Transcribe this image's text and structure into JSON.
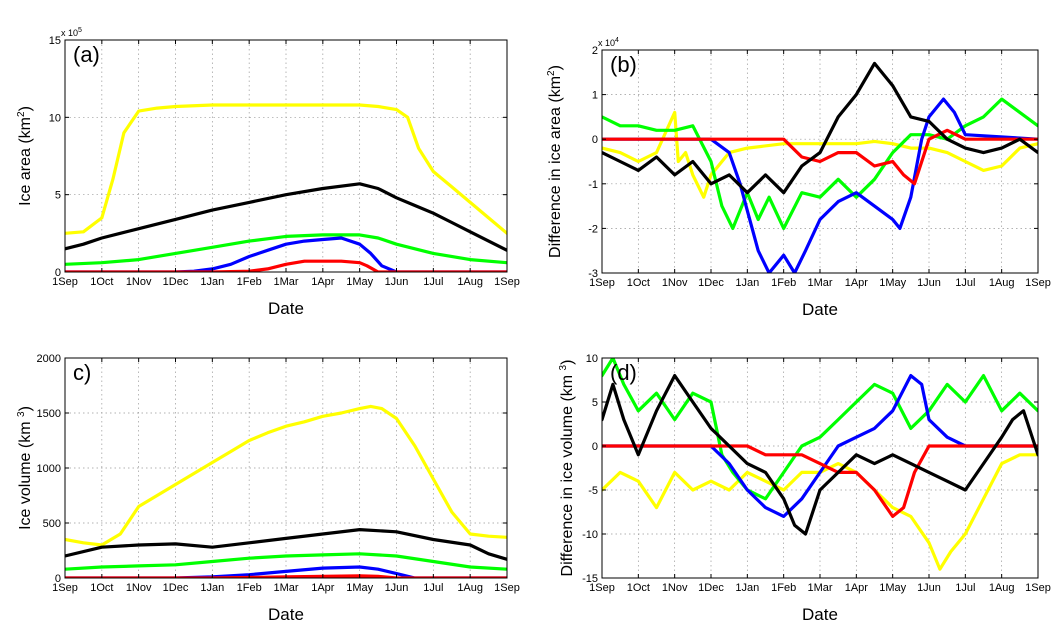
{
  "chart_data": [
    {
      "type": "line",
      "panel_label": "(a)",
      "xlabel": "Date",
      "ylabel_prefix": "Ice area (km",
      "ylabel_sup": "2",
      "ylabel_suffix": ")",
      "y_multiplier_base": "x 10",
      "y_multiplier_exp": "5",
      "ylim": [
        0,
        15
      ],
      "yticks": [
        0,
        5,
        10,
        15
      ],
      "ytick_labels": [
        "0",
        "5",
        "10",
        "15"
      ],
      "xlim": [
        0,
        12
      ],
      "xticks": [
        0,
        1,
        2,
        3,
        4,
        5,
        6,
        7,
        8,
        9,
        10,
        11,
        12
      ],
      "xtick_labels": [
        "1Sep",
        "1Oct",
        "1Nov",
        "1Dec",
        "1Jan",
        "1Feb",
        "1Mar",
        "1Apr",
        "1May",
        "1Jun",
        "1Jul",
        "1Aug",
        "1Sep"
      ],
      "grid": true,
      "series": [
        {
          "color": "#ffff00",
          "x": [
            0,
            0.5,
            1,
            1.3,
            1.6,
            2,
            2.5,
            3,
            4,
            5,
            6,
            7,
            8,
            8.5,
            9,
            9.3,
            9.6,
            10,
            10.5,
            11,
            11.5,
            12
          ],
          "y": [
            2.5,
            2.6,
            3.5,
            6,
            9,
            10.4,
            10.6,
            10.7,
            10.8,
            10.8,
            10.8,
            10.8,
            10.8,
            10.7,
            10.5,
            10,
            8,
            6.5,
            5.5,
            4.5,
            3.5,
            2.5
          ]
        },
        {
          "color": "#000000",
          "x": [
            0,
            0.5,
            1,
            1.5,
            2,
            3,
            4,
            5,
            6,
            7,
            8,
            8.5,
            9,
            9.5,
            10,
            10.5,
            11,
            11.5,
            12
          ],
          "y": [
            1.5,
            1.8,
            2.2,
            2.5,
            2.8,
            3.4,
            4,
            4.5,
            5,
            5.4,
            5.7,
            5.4,
            4.8,
            4.3,
            3.8,
            3.2,
            2.6,
            2,
            1.4
          ]
        },
        {
          "color": "#00ff00",
          "x": [
            0,
            1,
            2,
            3,
            4,
            5,
            6,
            7,
            8,
            8.5,
            9,
            10,
            11,
            12
          ],
          "y": [
            0.5,
            0.6,
            0.8,
            1.2,
            1.6,
            2,
            2.3,
            2.4,
            2.4,
            2.2,
            1.8,
            1.2,
            0.8,
            0.6
          ]
        },
        {
          "color": "#0000ff",
          "x": [
            0,
            3,
            3.5,
            4,
            4.5,
            5,
            5.5,
            6,
            6.5,
            7,
            7.5,
            8,
            8.3,
            8.6,
            9,
            12
          ],
          "y": [
            0,
            0,
            0.05,
            0.2,
            0.5,
            1,
            1.4,
            1.8,
            2,
            2.1,
            2.2,
            1.8,
            1.2,
            0.4,
            0,
            0
          ]
        },
        {
          "color": "#ff0000",
          "x": [
            0,
            4,
            5,
            5.5,
            6,
            6.5,
            7,
            7.5,
            8,
            8.2,
            8.5,
            12
          ],
          "y": [
            0,
            0,
            0.05,
            0.2,
            0.5,
            0.7,
            0.7,
            0.7,
            0.6,
            0.4,
            0,
            0
          ]
        }
      ]
    },
    {
      "type": "line",
      "panel_label": "(b)",
      "xlabel": "Date",
      "ylabel_prefix": "Difference in ice area (km",
      "ylabel_sup": "2",
      "ylabel_suffix": ")",
      "y_multiplier_base": "x 10",
      "y_multiplier_exp": "4",
      "ylim": [
        -3,
        2
      ],
      "yticks": [
        -3,
        -2,
        -1,
        0,
        1,
        2
      ],
      "ytick_labels": [
        "-3",
        "-2",
        "-1",
        "0",
        "1",
        "2"
      ],
      "xlim": [
        0,
        12
      ],
      "xticks": [
        0,
        1,
        2,
        3,
        4,
        5,
        6,
        7,
        8,
        9,
        10,
        11,
        12
      ],
      "xtick_labels": [
        "1Sep",
        "1Oct",
        "1Nov",
        "1Dec",
        "1Jan",
        "1Feb",
        "1Mar",
        "1Apr",
        "1May",
        "1Jun",
        "1Jul",
        "1Aug",
        "1Sep"
      ],
      "grid": true,
      "series": [
        {
          "color": "#ffff00",
          "x": [
            0,
            0.5,
            1,
            1.5,
            2,
            2.1,
            2.3,
            2.5,
            2.8,
            3,
            3.5,
            4,
            5,
            6,
            7,
            7.5,
            8,
            8.5,
            9,
            9.5,
            10,
            10.5,
            11,
            11.5,
            12
          ],
          "y": [
            -0.2,
            -0.3,
            -0.5,
            -0.3,
            0.6,
            -0.5,
            -0.3,
            -0.8,
            -1.3,
            -0.8,
            -0.3,
            -0.2,
            -0.1,
            -0.1,
            -0.1,
            -0.05,
            -0.1,
            -0.2,
            -0.2,
            -0.3,
            -0.5,
            -0.7,
            -0.6,
            -0.2,
            -0.1
          ]
        },
        {
          "color": "#00ff00",
          "x": [
            0,
            0.5,
            1,
            1.5,
            2,
            2.5,
            3,
            3.3,
            3.6,
            4,
            4.3,
            4.6,
            5,
            5.5,
            6,
            6.5,
            7,
            7.5,
            8,
            8.5,
            9,
            9.5,
            10,
            10.5,
            11,
            11.5,
            12
          ],
          "y": [
            0.5,
            0.3,
            0.3,
            0.2,
            0.2,
            0.3,
            -0.5,
            -1.5,
            -2,
            -1.2,
            -1.8,
            -1.3,
            -2,
            -1.2,
            -1.3,
            -0.9,
            -1.3,
            -0.9,
            -0.3,
            0.1,
            0.1,
            0,
            0.3,
            0.5,
            0.9,
            0.6,
            0.3
          ]
        },
        {
          "color": "#0000ff",
          "x": [
            0,
            3,
            3.5,
            3.8,
            4,
            4.3,
            4.6,
            5,
            5.3,
            5.6,
            6,
            6.5,
            7,
            7.5,
            8,
            8.2,
            8.5,
            8.8,
            9,
            9.4,
            9.7,
            10,
            12
          ],
          "y": [
            0,
            0,
            -0.3,
            -1,
            -1.6,
            -2.5,
            -3,
            -2.6,
            -3,
            -2.5,
            -1.8,
            -1.4,
            -1.2,
            -1.5,
            -1.8,
            -2,
            -1.3,
            0,
            0.5,
            0.9,
            0.6,
            0.1,
            0
          ]
        },
        {
          "color": "#ff0000",
          "x": [
            0,
            5,
            5.5,
            6,
            6.5,
            7,
            7.5,
            8,
            8.3,
            8.6,
            9,
            9.5,
            10,
            12
          ],
          "y": [
            0,
            0,
            -0.4,
            -0.5,
            -0.3,
            -0.3,
            -0.6,
            -0.5,
            -0.8,
            -1,
            0,
            0.2,
            0,
            0
          ]
        },
        {
          "color": "#000000",
          "x": [
            0,
            0.5,
            1,
            1.5,
            2,
            2.5,
            3,
            3.5,
            4,
            4.5,
            5,
            5.5,
            6,
            6.5,
            7,
            7.5,
            7.8,
            8,
            8.5,
            9,
            9.5,
            10,
            10.5,
            11,
            11.5,
            12
          ],
          "y": [
            -0.3,
            -0.5,
            -0.7,
            -0.4,
            -0.8,
            -0.5,
            -1,
            -0.8,
            -1.2,
            -0.8,
            -1.2,
            -0.6,
            -0.3,
            0.5,
            1,
            1.7,
            1.4,
            1.2,
            0.5,
            0.4,
            0,
            -0.2,
            -0.3,
            -0.2,
            0,
            -0.3
          ]
        }
      ]
    },
    {
      "type": "line",
      "panel_label": "c)",
      "xlabel": "Date",
      "ylabel_prefix": "Ice volume (km ",
      "ylabel_sup": "3",
      "ylabel_suffix": ")",
      "y_multiplier_base": "",
      "y_multiplier_exp": "",
      "ylim": [
        0,
        2000
      ],
      "yticks": [
        0,
        500,
        1000,
        1500,
        2000
      ],
      "ytick_labels": [
        "0",
        "500",
        "1000",
        "1500",
        "2000"
      ],
      "xlim": [
        0,
        12
      ],
      "xticks": [
        0,
        1,
        2,
        3,
        4,
        5,
        6,
        7,
        8,
        9,
        10,
        11,
        12
      ],
      "xtick_labels": [
        "1Sep",
        "1Oct",
        "1Nov",
        "1Dec",
        "1Jan",
        "1Feb",
        "1Mar",
        "1Apr",
        "1May",
        "1Jun",
        "1Jul",
        "1Aug",
        "1Sep"
      ],
      "grid": true,
      "series": [
        {
          "color": "#ffff00",
          "x": [
            0,
            0.5,
            1,
            1.5,
            2,
            2.5,
            3,
            3.5,
            4,
            4.5,
            5,
            5.5,
            6,
            6.5,
            7,
            7.5,
            8,
            8.3,
            8.6,
            9,
            9.5,
            10,
            10.5,
            11,
            11.5,
            12
          ],
          "y": [
            350,
            320,
            300,
            400,
            650,
            750,
            850,
            950,
            1050,
            1150,
            1250,
            1320,
            1380,
            1420,
            1470,
            1500,
            1540,
            1560,
            1540,
            1450,
            1200,
            900,
            600,
            400,
            380,
            370
          ]
        },
        {
          "color": "#000000",
          "x": [
            0,
            1,
            2,
            3,
            4,
            5,
            6,
            7,
            8,
            9,
            10,
            11,
            11.5,
            12
          ],
          "y": [
            200,
            280,
            300,
            310,
            280,
            320,
            360,
            400,
            440,
            420,
            350,
            300,
            220,
            170
          ]
        },
        {
          "color": "#00ff00",
          "x": [
            0,
            1,
            2,
            3,
            4,
            5,
            6,
            7,
            8,
            9,
            10,
            11,
            12
          ],
          "y": [
            80,
            100,
            110,
            120,
            150,
            180,
            200,
            210,
            220,
            200,
            150,
            100,
            80
          ]
        },
        {
          "color": "#0000ff",
          "x": [
            0,
            3,
            4,
            5,
            6,
            7,
            8,
            8.5,
            9,
            9.5,
            12
          ],
          "y": [
            0,
            0,
            10,
            30,
            60,
            90,
            100,
            80,
            40,
            0,
            0
          ]
        },
        {
          "color": "#ff0000",
          "x": [
            0,
            4,
            5,
            6,
            7,
            8,
            8.5,
            9,
            12
          ],
          "y": [
            0,
            0,
            5,
            10,
            15,
            20,
            15,
            0,
            0
          ]
        }
      ]
    },
    {
      "type": "line",
      "panel_label": "(d)",
      "xlabel": "Date",
      "ylabel_prefix": "Difference in ice volume (km ",
      "ylabel_sup": "3",
      "ylabel_suffix": ")",
      "y_multiplier_base": "",
      "y_multiplier_exp": "",
      "ylim": [
        -15,
        10
      ],
      "yticks": [
        -15,
        -10,
        -5,
        0,
        5,
        10
      ],
      "ytick_labels": [
        "-15",
        "-10",
        "-5",
        "0",
        "5",
        "10"
      ],
      "xlim": [
        0,
        12
      ],
      "xticks": [
        0,
        1,
        2,
        3,
        4,
        5,
        6,
        7,
        8,
        9,
        10,
        11,
        12
      ],
      "xtick_labels": [
        "1Sep",
        "1Oct",
        "1Nov",
        "1Dec",
        "1Jan",
        "1Feb",
        "1Mar",
        "1Apr",
        "1May",
        "1Jun",
        "1Jul",
        "1Aug",
        "1Sep"
      ],
      "grid": true,
      "series": [
        {
          "color": "#ffff00",
          "x": [
            0,
            0.5,
            1,
            1.5,
            2,
            2.5,
            3,
            3.5,
            4,
            4.5,
            5,
            5.5,
            6,
            6.5,
            7,
            7.5,
            8,
            8.5,
            9,
            9.3,
            9.6,
            10,
            10.5,
            11,
            11.5,
            12
          ],
          "y": [
            -5,
            -3,
            -4,
            -7,
            -3,
            -5,
            -4,
            -5,
            -3,
            -4,
            -5,
            -3,
            -3,
            -2,
            -3,
            -5,
            -7,
            -8,
            -11,
            -14,
            -12,
            -10,
            -6,
            -2,
            -1,
            -1
          ]
        },
        {
          "color": "#00ff00",
          "x": [
            0,
            0.3,
            0.6,
            1,
            1.5,
            2,
            2.5,
            3,
            3.3,
            3.6,
            4,
            4.5,
            5,
            5.5,
            6,
            6.5,
            7,
            7.5,
            8,
            8.5,
            9,
            9.5,
            10,
            10.5,
            11,
            11.5,
            12
          ],
          "y": [
            8,
            10,
            7,
            4,
            6,
            3,
            6,
            5,
            -1,
            -3,
            -5,
            -6,
            -3,
            0,
            1,
            3,
            5,
            7,
            6,
            2,
            4,
            7,
            5,
            8,
            4,
            6,
            4
          ]
        },
        {
          "color": "#0000ff",
          "x": [
            0,
            3,
            3.5,
            4,
            4.5,
            5,
            5.5,
            6,
            6.5,
            7,
            7.5,
            8,
            8.5,
            8.8,
            9,
            9.5,
            10,
            12
          ],
          "y": [
            0,
            0,
            -2,
            -5,
            -7,
            -8,
            -6,
            -3,
            0,
            1,
            2,
            4,
            8,
            7,
            3,
            1,
            0,
            0
          ]
        },
        {
          "color": "#ff0000",
          "x": [
            0,
            4,
            4.5,
            5,
            5.5,
            6,
            6.5,
            7,
            7.5,
            8,
            8.3,
            8.6,
            9,
            12
          ],
          "y": [
            0,
            0,
            -1,
            -1,
            -1,
            -2,
            -3,
            -3,
            -5,
            -8,
            -7,
            -3,
            0,
            0
          ]
        },
        {
          "color": "#000000",
          "x": [
            0,
            0.3,
            0.6,
            1,
            1.5,
            2,
            2.5,
            3,
            3.5,
            4,
            4.5,
            5,
            5.3,
            5.6,
            6,
            6.5,
            7,
            7.5,
            8,
            8.5,
            9,
            9.5,
            10,
            10.5,
            11,
            11.3,
            11.6,
            12
          ],
          "y": [
            3,
            7,
            3,
            -1,
            4,
            8,
            5,
            2,
            0,
            -2,
            -3,
            -6,
            -9,
            -10,
            -5,
            -3,
            -1,
            -2,
            -1,
            -2,
            -3,
            -4,
            -5,
            -2,
            1,
            3,
            4,
            -1
          ]
        }
      ]
    }
  ]
}
